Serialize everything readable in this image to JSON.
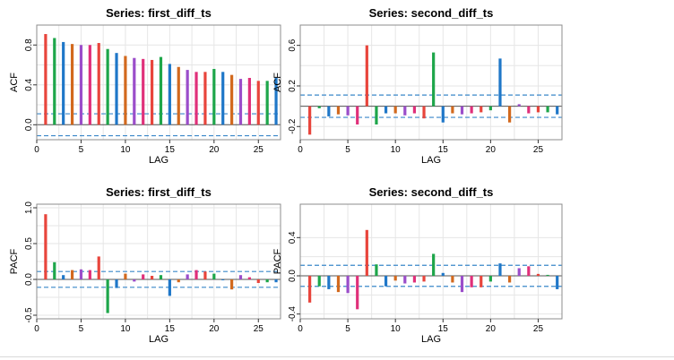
{
  "colors": {
    "palette": [
      "#e8453c",
      "#1ea64a",
      "#1f77c8",
      "#d2691e",
      "#9b4dca",
      "#e0307a"
    ],
    "ci_line": "#3a87c9",
    "grid": "#e6e6e6",
    "frame": "#8c8c8c"
  },
  "chart_data": [
    {
      "type": "bar",
      "title": "Series:  first_diff_ts",
      "xlabel": "LAG",
      "ylabel": "ACF",
      "xlim": [
        0,
        27.5
      ],
      "ylim": [
        -0.15,
        1.0
      ],
      "x_ticks": [
        0,
        5,
        10,
        15,
        20,
        25
      ],
      "y_ticks": [
        0.0,
        0.4,
        0.8
      ],
      "y_tick_labels": [
        "0.0",
        "0.4",
        "0.8"
      ],
      "ci": [
        0.11,
        -0.11
      ],
      "lags": [
        1,
        2,
        3,
        4,
        5,
        6,
        7,
        8,
        9,
        10,
        11,
        12,
        13,
        14,
        15,
        16,
        17,
        18,
        19,
        20,
        21,
        22,
        23,
        24,
        25,
        26,
        27
      ],
      "values": [
        0.91,
        0.87,
        0.83,
        0.81,
        0.8,
        0.8,
        0.82,
        0.76,
        0.72,
        0.69,
        0.67,
        0.66,
        0.65,
        0.68,
        0.61,
        0.58,
        0.55,
        0.53,
        0.53,
        0.56,
        0.53,
        0.5,
        0.46,
        0.47,
        0.44,
        0.44,
        0.47
      ]
    },
    {
      "type": "bar",
      "title": "Series:  second_diff_ts",
      "xlabel": "LAG",
      "ylabel": "ACF",
      "xlim": [
        0,
        27.5
      ],
      "ylim": [
        -0.33,
        0.8
      ],
      "x_ticks": [
        0,
        5,
        10,
        15,
        20,
        25
      ],
      "y_ticks": [
        -0.2,
        0.2,
        0.6
      ],
      "y_tick_labels": [
        "-0.2",
        "0.2",
        "0.6"
      ],
      "ci": [
        0.11,
        -0.11
      ],
      "lags": [
        1,
        2,
        3,
        4,
        5,
        6,
        7,
        8,
        9,
        10,
        11,
        12,
        13,
        14,
        15,
        16,
        17,
        18,
        19,
        20,
        21,
        22,
        23,
        24,
        25,
        26,
        27
      ],
      "values": [
        -0.28,
        -0.02,
        -0.1,
        -0.08,
        -0.09,
        -0.18,
        0.6,
        -0.18,
        -0.07,
        -0.07,
        -0.09,
        -0.07,
        -0.12,
        0.53,
        -0.16,
        -0.07,
        -0.08,
        -0.07,
        -0.06,
        -0.04,
        0.47,
        -0.16,
        0.02,
        -0.07,
        -0.06,
        -0.06,
        -0.08
      ]
    },
    {
      "type": "bar",
      "title": "Series:  first_diff_ts",
      "xlabel": "LAG",
      "ylabel": "PACF",
      "xlim": [
        0,
        27.5
      ],
      "ylim": [
        -0.55,
        1.05
      ],
      "x_ticks": [
        0,
        5,
        10,
        15,
        20,
        25
      ],
      "y_ticks": [
        -0.5,
        0.0,
        0.5,
        1.0
      ],
      "y_tick_labels": [
        "-0.5",
        "0.0",
        "0.5",
        "1.0"
      ],
      "ci": [
        0.11,
        -0.11
      ],
      "lags": [
        1,
        2,
        3,
        4,
        5,
        6,
        7,
        8,
        9,
        10,
        11,
        12,
        13,
        14,
        15,
        16,
        17,
        18,
        19,
        20,
        21,
        22,
        23,
        24,
        25,
        26,
        27
      ],
      "values": [
        0.91,
        0.24,
        0.06,
        0.13,
        0.14,
        0.13,
        0.32,
        -0.47,
        -0.12,
        0.08,
        -0.03,
        0.07,
        0.05,
        0.06,
        -0.23,
        -0.04,
        0.07,
        0.13,
        0.11,
        0.08,
        -0.01,
        -0.14,
        0.06,
        0.03,
        -0.05,
        -0.04,
        -0.04
      ]
    },
    {
      "type": "bar",
      "title": "Series:  second_diff_ts",
      "xlabel": "LAG",
      "ylabel": "PACF",
      "xlim": [
        0,
        27.5
      ],
      "ylim": [
        -0.45,
        0.75
      ],
      "x_ticks": [
        0,
        5,
        10,
        15,
        20,
        25
      ],
      "y_ticks": [
        -0.4,
        0.0,
        0.4
      ],
      "y_tick_labels": [
        "-0.4",
        "0.0",
        "0.4"
      ],
      "ci": [
        0.11,
        -0.11
      ],
      "lags": [
        1,
        2,
        3,
        4,
        5,
        6,
        7,
        8,
        9,
        10,
        11,
        12,
        13,
        14,
        15,
        16,
        17,
        18,
        19,
        20,
        21,
        22,
        23,
        24,
        25,
        26,
        27
      ],
      "values": [
        -0.28,
        -0.11,
        -0.14,
        -0.17,
        -0.18,
        -0.35,
        0.48,
        0.12,
        -0.11,
        -0.05,
        -0.08,
        -0.07,
        -0.06,
        0.23,
        0.03,
        -0.07,
        -0.17,
        -0.12,
        -0.12,
        -0.06,
        0.13,
        -0.07,
        0.08,
        0.1,
        0.02,
        0.01,
        -0.14
      ]
    }
  ]
}
